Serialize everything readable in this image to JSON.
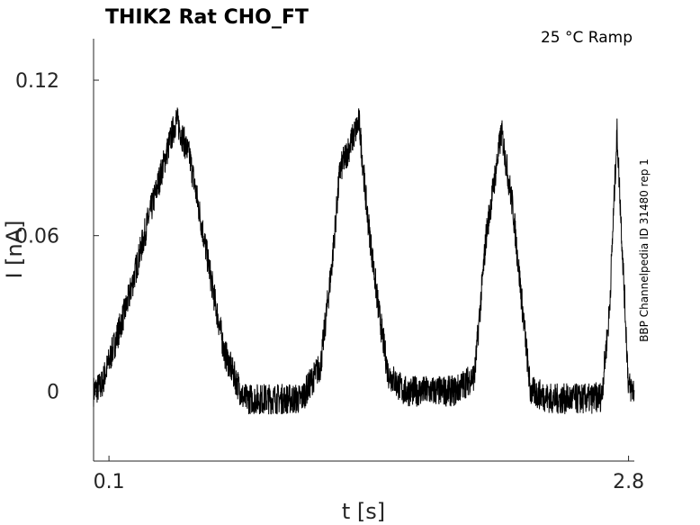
{
  "chart_data": {
    "type": "line",
    "title": "THIK2  Rat  CHO_FT",
    "condition_label": "25 °C  Ramp",
    "side_label": "BBP Channelpedia ID 31480 rep 1",
    "xlabel": "t [s]",
    "ylabel": "I [nA]",
    "xticks": [
      "0.1",
      "2.8"
    ],
    "yticks": [
      "0",
      "0.06",
      "0.12"
    ],
    "xlim": [
      0.02,
      2.83
    ],
    "ylim": [
      -0.027,
      0.136
    ],
    "grid": false,
    "legend": "none",
    "line_color": "#000000",
    "series": [
      {
        "x": [
          0.02,
          0.06,
          0.12,
          0.2,
          0.3,
          0.4,
          0.45,
          0.52,
          0.58,
          0.65,
          0.7,
          0.8,
          0.86,
          0.9,
          1.0,
          1.1,
          1.2,
          1.26,
          1.3,
          1.4,
          1.44,
          1.5,
          1.55,
          1.63,
          1.7,
          1.8,
          1.9,
          2.0,
          2.06,
          2.14,
          2.2,
          2.29,
          2.4,
          2.5,
          2.6,
          2.66,
          2.7,
          2.74,
          2.8,
          2.83
        ],
        "y": [
          0.0,
          0.002,
          0.016,
          0.035,
          0.065,
          0.092,
          0.105,
          0.09,
          0.065,
          0.035,
          0.015,
          -0.003,
          -0.003,
          -0.003,
          -0.003,
          -0.003,
          0.01,
          0.05,
          0.085,
          0.104,
          0.07,
          0.032,
          0.007,
          0.0,
          0.0,
          0.0,
          0.0,
          0.006,
          0.06,
          0.1,
          0.07,
          0.0,
          -0.003,
          -0.003,
          -0.003,
          -0.002,
          0.03,
          0.1,
          0.002,
          0.0
        ]
      }
    ]
  }
}
